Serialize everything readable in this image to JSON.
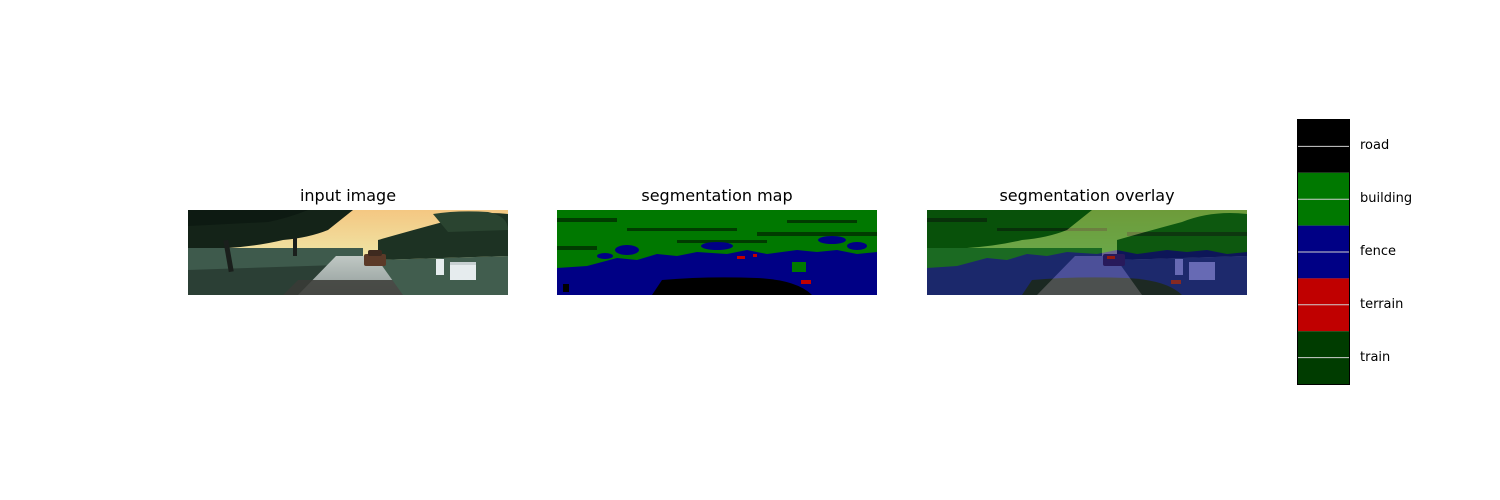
{
  "panels": {
    "input": {
      "title": "input image"
    },
    "map": {
      "title": "segmentation map"
    },
    "overlay": {
      "title": "segmentation overlay"
    }
  },
  "chart_data": {
    "type": "heatmap",
    "colorbar": {
      "classes": [
        {
          "label": "road",
          "color": "#000000"
        },
        {
          "label": "building",
          "color": "#007800"
        },
        {
          "label": "fence",
          "color": "#000085"
        },
        {
          "label": "terrain",
          "color": "#c00000"
        },
        {
          "label": "train",
          "color": "#003c00"
        }
      ]
    },
    "colors": {
      "sky_top": "#f4c782",
      "sky_mid": "#efe7a8",
      "foliage_dark": "#142318",
      "grass": "#3e5a4c",
      "road_asphalt": "#9aa6a4",
      "road_shadow": "#3a3b36",
      "car": "#5b3a28",
      "box_white": "#e6ecee"
    }
  }
}
